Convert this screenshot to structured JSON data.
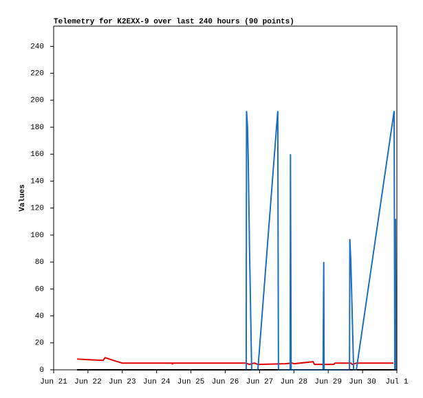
{
  "chart_data": {
    "type": "line",
    "title": "Telemetry for K2EXX-9 over last 240 hours (90 points)",
    "y_label": "Values",
    "ylim": [
      0,
      255
    ],
    "yticks": [
      0,
      20,
      40,
      60,
      80,
      100,
      120,
      140,
      160,
      180,
      200,
      220,
      240
    ],
    "xlim": [
      0,
      10
    ],
    "xticks": [
      {
        "value": 0,
        "label": "Jun 21"
      },
      {
        "value": 1,
        "label": "Jun 22"
      },
      {
        "value": 2,
        "label": "Jun 23"
      },
      {
        "value": 3,
        "label": "Jun 24"
      },
      {
        "value": 4,
        "label": "Jun 25"
      },
      {
        "value": 5,
        "label": "Jun 26"
      },
      {
        "value": 6,
        "label": "Jun 27"
      },
      {
        "value": 7,
        "label": "Jun 28"
      },
      {
        "value": 8,
        "label": "Jun 29"
      },
      {
        "value": 9,
        "label": "Jun 30"
      },
      {
        "value": 10,
        "label": "Jul 1"
      }
    ],
    "series": [
      {
        "color": "#000000",
        "x": [
          0.68,
          10
        ],
        "values": [
          0,
          0
        ]
      },
      {
        "color": "#e00000",
        "x": [
          0.68,
          1.0,
          1.44,
          1.5,
          1.74,
          2.0,
          3.45,
          3.46,
          3.47,
          5.61,
          5.7,
          5.85,
          5.95,
          6.75,
          6.95,
          7.0,
          7.56,
          7.6,
          8.16,
          8.2,
          8.66,
          8.7,
          8.82,
          9.9
        ],
        "values": [
          8,
          7.5,
          7,
          9,
          7,
          5,
          5,
          4,
          5,
          5,
          4,
          5,
          4,
          4.5,
          5,
          4.5,
          6,
          4,
          4,
          5,
          5,
          4,
          5,
          5
        ]
      },
      {
        "color": "#1f6fbf",
        "x": [
          5.61,
          5.62,
          5.65,
          5.67,
          5.71,
          5.77,
          5.95,
          6.53,
          6.55,
          6.89,
          6.9,
          6.92,
          7.85,
          7.86,
          7.87,
          7.88,
          8.62,
          8.63,
          8.66,
          8.74,
          8.82,
          9.92,
          9.94,
          9.96,
          9.98
        ],
        "values": [
          0,
          192,
          180,
          155,
          85,
          0,
          0,
          192,
          0,
          0,
          160,
          0,
          0,
          40,
          80,
          0,
          0,
          97,
          80,
          0,
          0,
          192,
          0,
          112,
          0
        ]
      }
    ]
  }
}
